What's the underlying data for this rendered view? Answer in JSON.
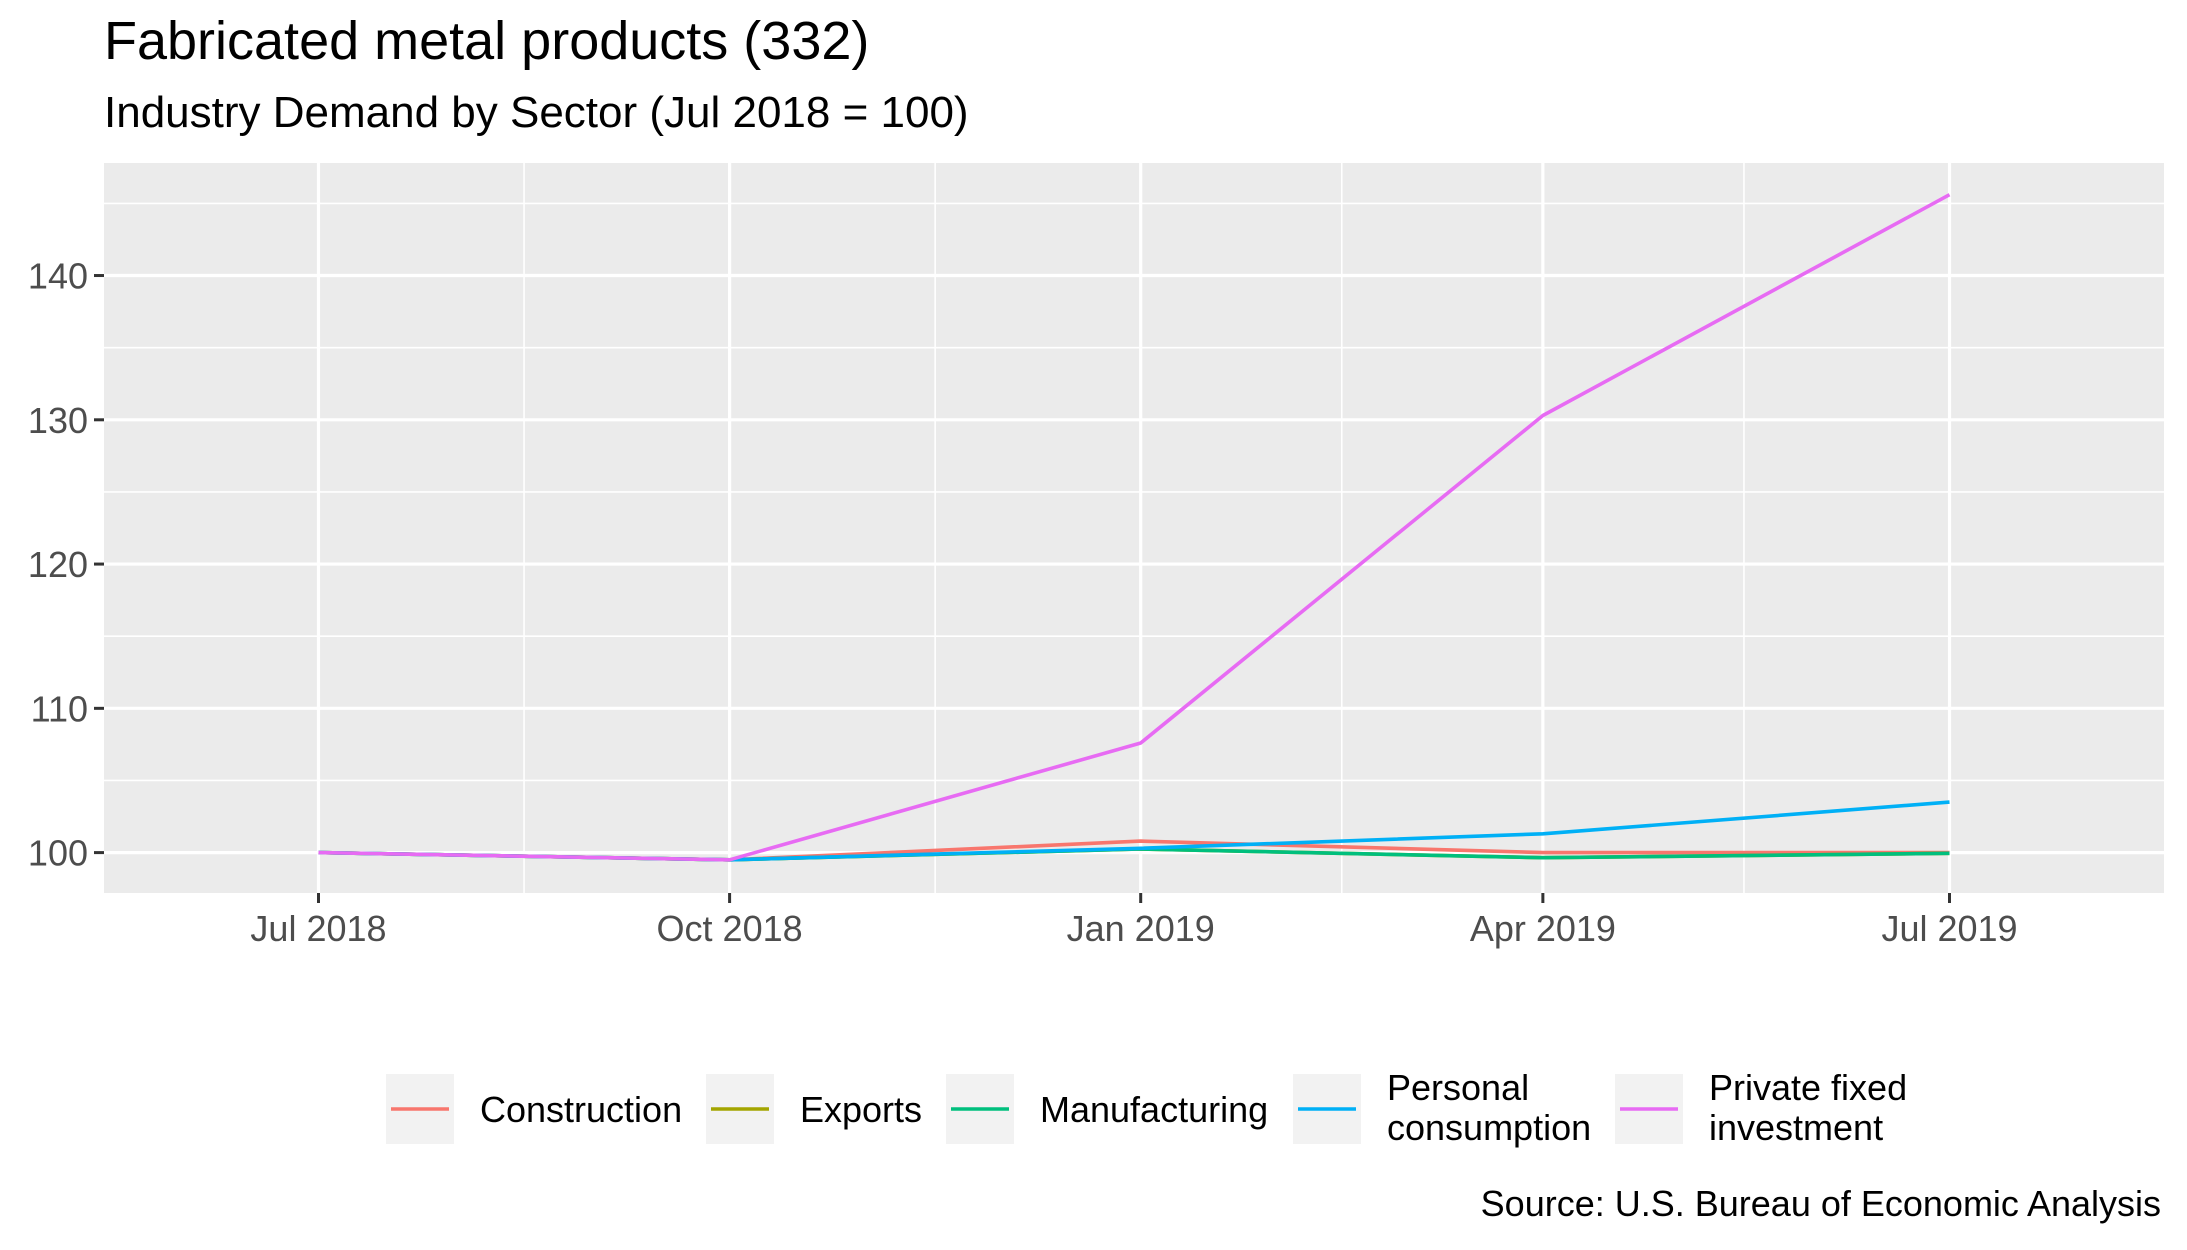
{
  "chart_data": {
    "type": "line",
    "title": "Fabricated metal products (332)",
    "subtitle": "Industry Demand by Sector (Jul 2018 = 100)",
    "caption": "Source: U.S. Bureau of Economic Analysis",
    "xlabel": "",
    "ylabel": "",
    "x": [
      "2018-07-01",
      "2018-10-01",
      "2019-01-01",
      "2019-04-01",
      "2019-07-01"
    ],
    "x_ticks": [
      {
        "date": "2018-07-01",
        "label": "Jul 2018"
      },
      {
        "date": "2018-10-01",
        "label": "Oct 2018"
      },
      {
        "date": "2019-01-01",
        "label": "Jan 2019"
      },
      {
        "date": "2019-04-01",
        "label": "Apr 2019"
      },
      {
        "date": "2019-07-01",
        "label": "Jul 2019"
      }
    ],
    "x_minor_ticks": [
      "2018-08-16",
      "2018-11-16",
      "2019-02-15",
      "2019-05-16"
    ],
    "xlim": [
      "2018-05-14",
      "2019-08-18"
    ],
    "y_ticks": [
      100,
      110,
      120,
      130,
      140
    ],
    "y_minor_ticks": [
      105,
      115,
      125,
      135,
      145
    ],
    "ylim": [
      97.2,
      147.8
    ],
    "grid": true,
    "legend_position": "bottom",
    "series": [
      {
        "name": "Construction",
        "color": "#F8766D",
        "values": [
          100.0,
          99.5,
          100.8,
          100.0,
          100.0
        ]
      },
      {
        "name": "Exports",
        "color": "#A3A500",
        "values": [
          100.0,
          99.5,
          100.25,
          99.65,
          99.95
        ]
      },
      {
        "name": "Manufacturing",
        "color": "#00BF7D",
        "values": [
          100.0,
          99.5,
          100.25,
          99.65,
          99.95
        ]
      },
      {
        "name": "Personal consumption",
        "color": "#00B0F6",
        "values": [
          100.0,
          99.5,
          100.3,
          101.3,
          103.5
        ]
      },
      {
        "name": "Private fixed investment",
        "color": "#E76BF3",
        "values": [
          100.0,
          99.5,
          107.6,
          130.3,
          145.6
        ]
      }
    ],
    "legend": [
      {
        "lines": [
          "Construction"
        ]
      },
      {
        "lines": [
          "Exports"
        ]
      },
      {
        "lines": [
          "Manufacturing"
        ]
      },
      {
        "lines": [
          "Personal",
          "consumption"
        ]
      },
      {
        "lines": [
          "Private fixed",
          "investment"
        ]
      }
    ],
    "colors": {
      "panel_background": "#EBEBEB",
      "grid": "#FFFFFF",
      "legend_key_background": "#F2F2F2",
      "axis_text": "#4D4D4D",
      "tick": "#333333"
    }
  }
}
